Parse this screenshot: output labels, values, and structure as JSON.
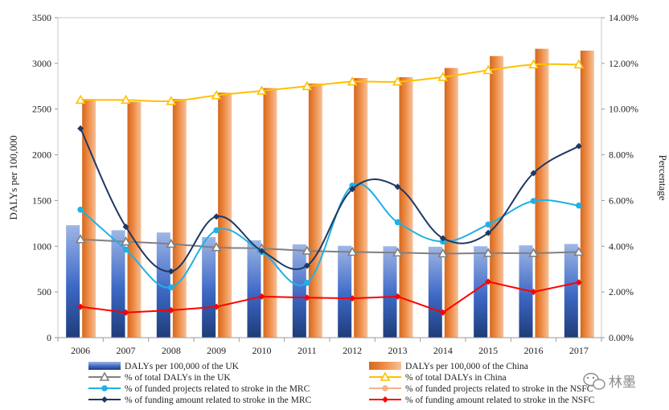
{
  "chart_data": {
    "type": "bar+line",
    "categories": [
      "2006",
      "2007",
      "2008",
      "2009",
      "2010",
      "2011",
      "2012",
      "2013",
      "2014",
      "2015",
      "2016",
      "2017"
    ],
    "ylabel_left": "DALYs per 100,000",
    "ylabel_right": "Percentage",
    "ylim_left": [
      0,
      3500
    ],
    "ylim_right": [
      0,
      14
    ],
    "left_ticks": [
      "0",
      "500",
      "1000",
      "1500",
      "2000",
      "2500",
      "3000",
      "3500"
    ],
    "right_ticks": [
      "0.00%",
      "2.00%",
      "4.00%",
      "6.00%",
      "8.00%",
      "10.00%",
      "12.00%",
      "14.00%"
    ],
    "bar_series": [
      {
        "name": "DALYs per 100,000 of the UK",
        "color": "#3a68c4",
        "values": [
          1230,
          1175,
          1150,
          1100,
          1065,
          1020,
          1005,
          1000,
          995,
          1000,
          1010,
          1025
        ]
      },
      {
        "name": "DALYs per 100,000 of the China",
        "color": "#e8833a",
        "values": [
          2610,
          2580,
          2610,
          2680,
          2730,
          2780,
          2840,
          2850,
          2950,
          3080,
          3160,
          3140
        ]
      }
    ],
    "line_series": [
      {
        "name": "% of total DALYs in the UK",
        "color": "#808080",
        "marker": "triangle",
        "smooth": true,
        "values": [
          4.3,
          4.2,
          4.1,
          3.95,
          3.9,
          3.8,
          3.75,
          3.72,
          3.68,
          3.7,
          3.7,
          3.75
        ]
      },
      {
        "name": "% of total DALYs in China",
        "color": "#ffc000",
        "marker": "triangle",
        "smooth": true,
        "values": [
          10.4,
          10.4,
          10.35,
          10.6,
          10.8,
          11.0,
          11.2,
          11.2,
          11.4,
          11.7,
          11.95,
          11.95
        ]
      },
      {
        "name": "% of funded projects related to stroke in the MRC",
        "color": "#1fb1e6",
        "marker": "circle",
        "smooth": true,
        "values": [
          5.6,
          3.85,
          2.2,
          4.7,
          3.75,
          2.4,
          6.65,
          5.05,
          4.2,
          4.95,
          5.98,
          5.78
        ]
      },
      {
        "name": "% of funded projects related to stroke in the NSFC",
        "color": "#f4b183",
        "marker": "circle",
        "smooth": true,
        "values": []
      },
      {
        "name": "% of funding amount related to stroke in the MRC",
        "color": "#203864",
        "marker": "diamond",
        "smooth": true,
        "values": [
          9.15,
          4.85,
          2.9,
          5.3,
          3.8,
          3.15,
          6.5,
          6.6,
          4.35,
          4.58,
          7.2,
          8.38
        ]
      },
      {
        "name": "% of funding amount related to stroke in the NSFC",
        "color": "#ff0000",
        "marker": "diamond",
        "smooth": false,
        "values": [
          1.35,
          1.1,
          1.2,
          1.35,
          1.8,
          1.75,
          1.72,
          1.8,
          1.1,
          2.45,
          2.0,
          2.42
        ]
      }
    ]
  },
  "watermark": {
    "text": "林墨",
    "icon": "wechat-icon"
  }
}
